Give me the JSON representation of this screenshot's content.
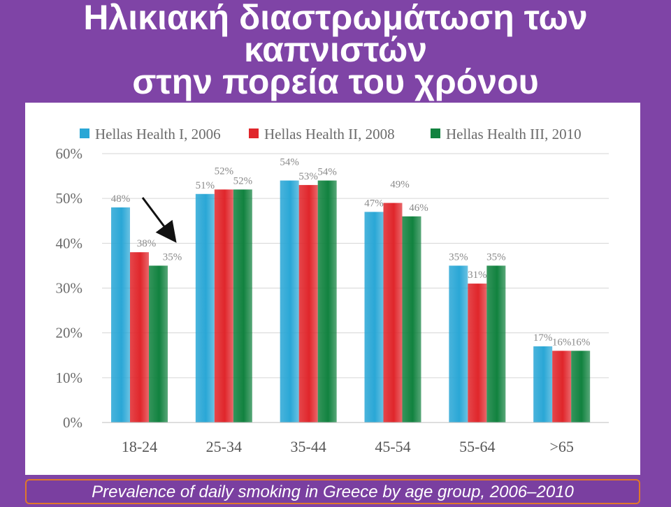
{
  "slide": {
    "title_line1": "Ηλικιακή διαστρωμάτωση των καπνιστών",
    "title_line2": "στην πορεία του χρόνου",
    "caption": "Prevalence of daily smoking in Greece by age group, 2006–2010"
  },
  "colors": {
    "background": "#7f44a6",
    "series": [
      "#2aa7d6",
      "#e0262b",
      "#11823f"
    ]
  },
  "chart_data": {
    "type": "bar",
    "categories": [
      "18-24",
      "25-34",
      "35-44",
      "45-54",
      "55-64",
      ">65"
    ],
    "series": [
      {
        "name": "Hellas Health I, 2006",
        "values": [
          48,
          51,
          54,
          47,
          35,
          17
        ],
        "labels": [
          "48%",
          "51%",
          "54%",
          "47%",
          "35%",
          "17%"
        ]
      },
      {
        "name": "Hellas Health II, 2008",
        "values": [
          38,
          52,
          53,
          49,
          31,
          16
        ],
        "labels": [
          "38%",
          "52%",
          "53%",
          "49%",
          "31%",
          "16%"
        ]
      },
      {
        "name": "Hellas Health III, 2010",
        "values": [
          35,
          52,
          54,
          46,
          35,
          16
        ],
        "labels": [
          "35%",
          "52%",
          "54%",
          "46%",
          "35%",
          "16%"
        ]
      }
    ],
    "yticks": [
      "0%",
      "10%",
      "20%",
      "30%",
      "40%",
      "50%",
      "60%"
    ],
    "ylim": [
      0,
      60
    ],
    "grid": true,
    "legend": "top",
    "annotation": "arrow pointing to 18-24 decline"
  }
}
